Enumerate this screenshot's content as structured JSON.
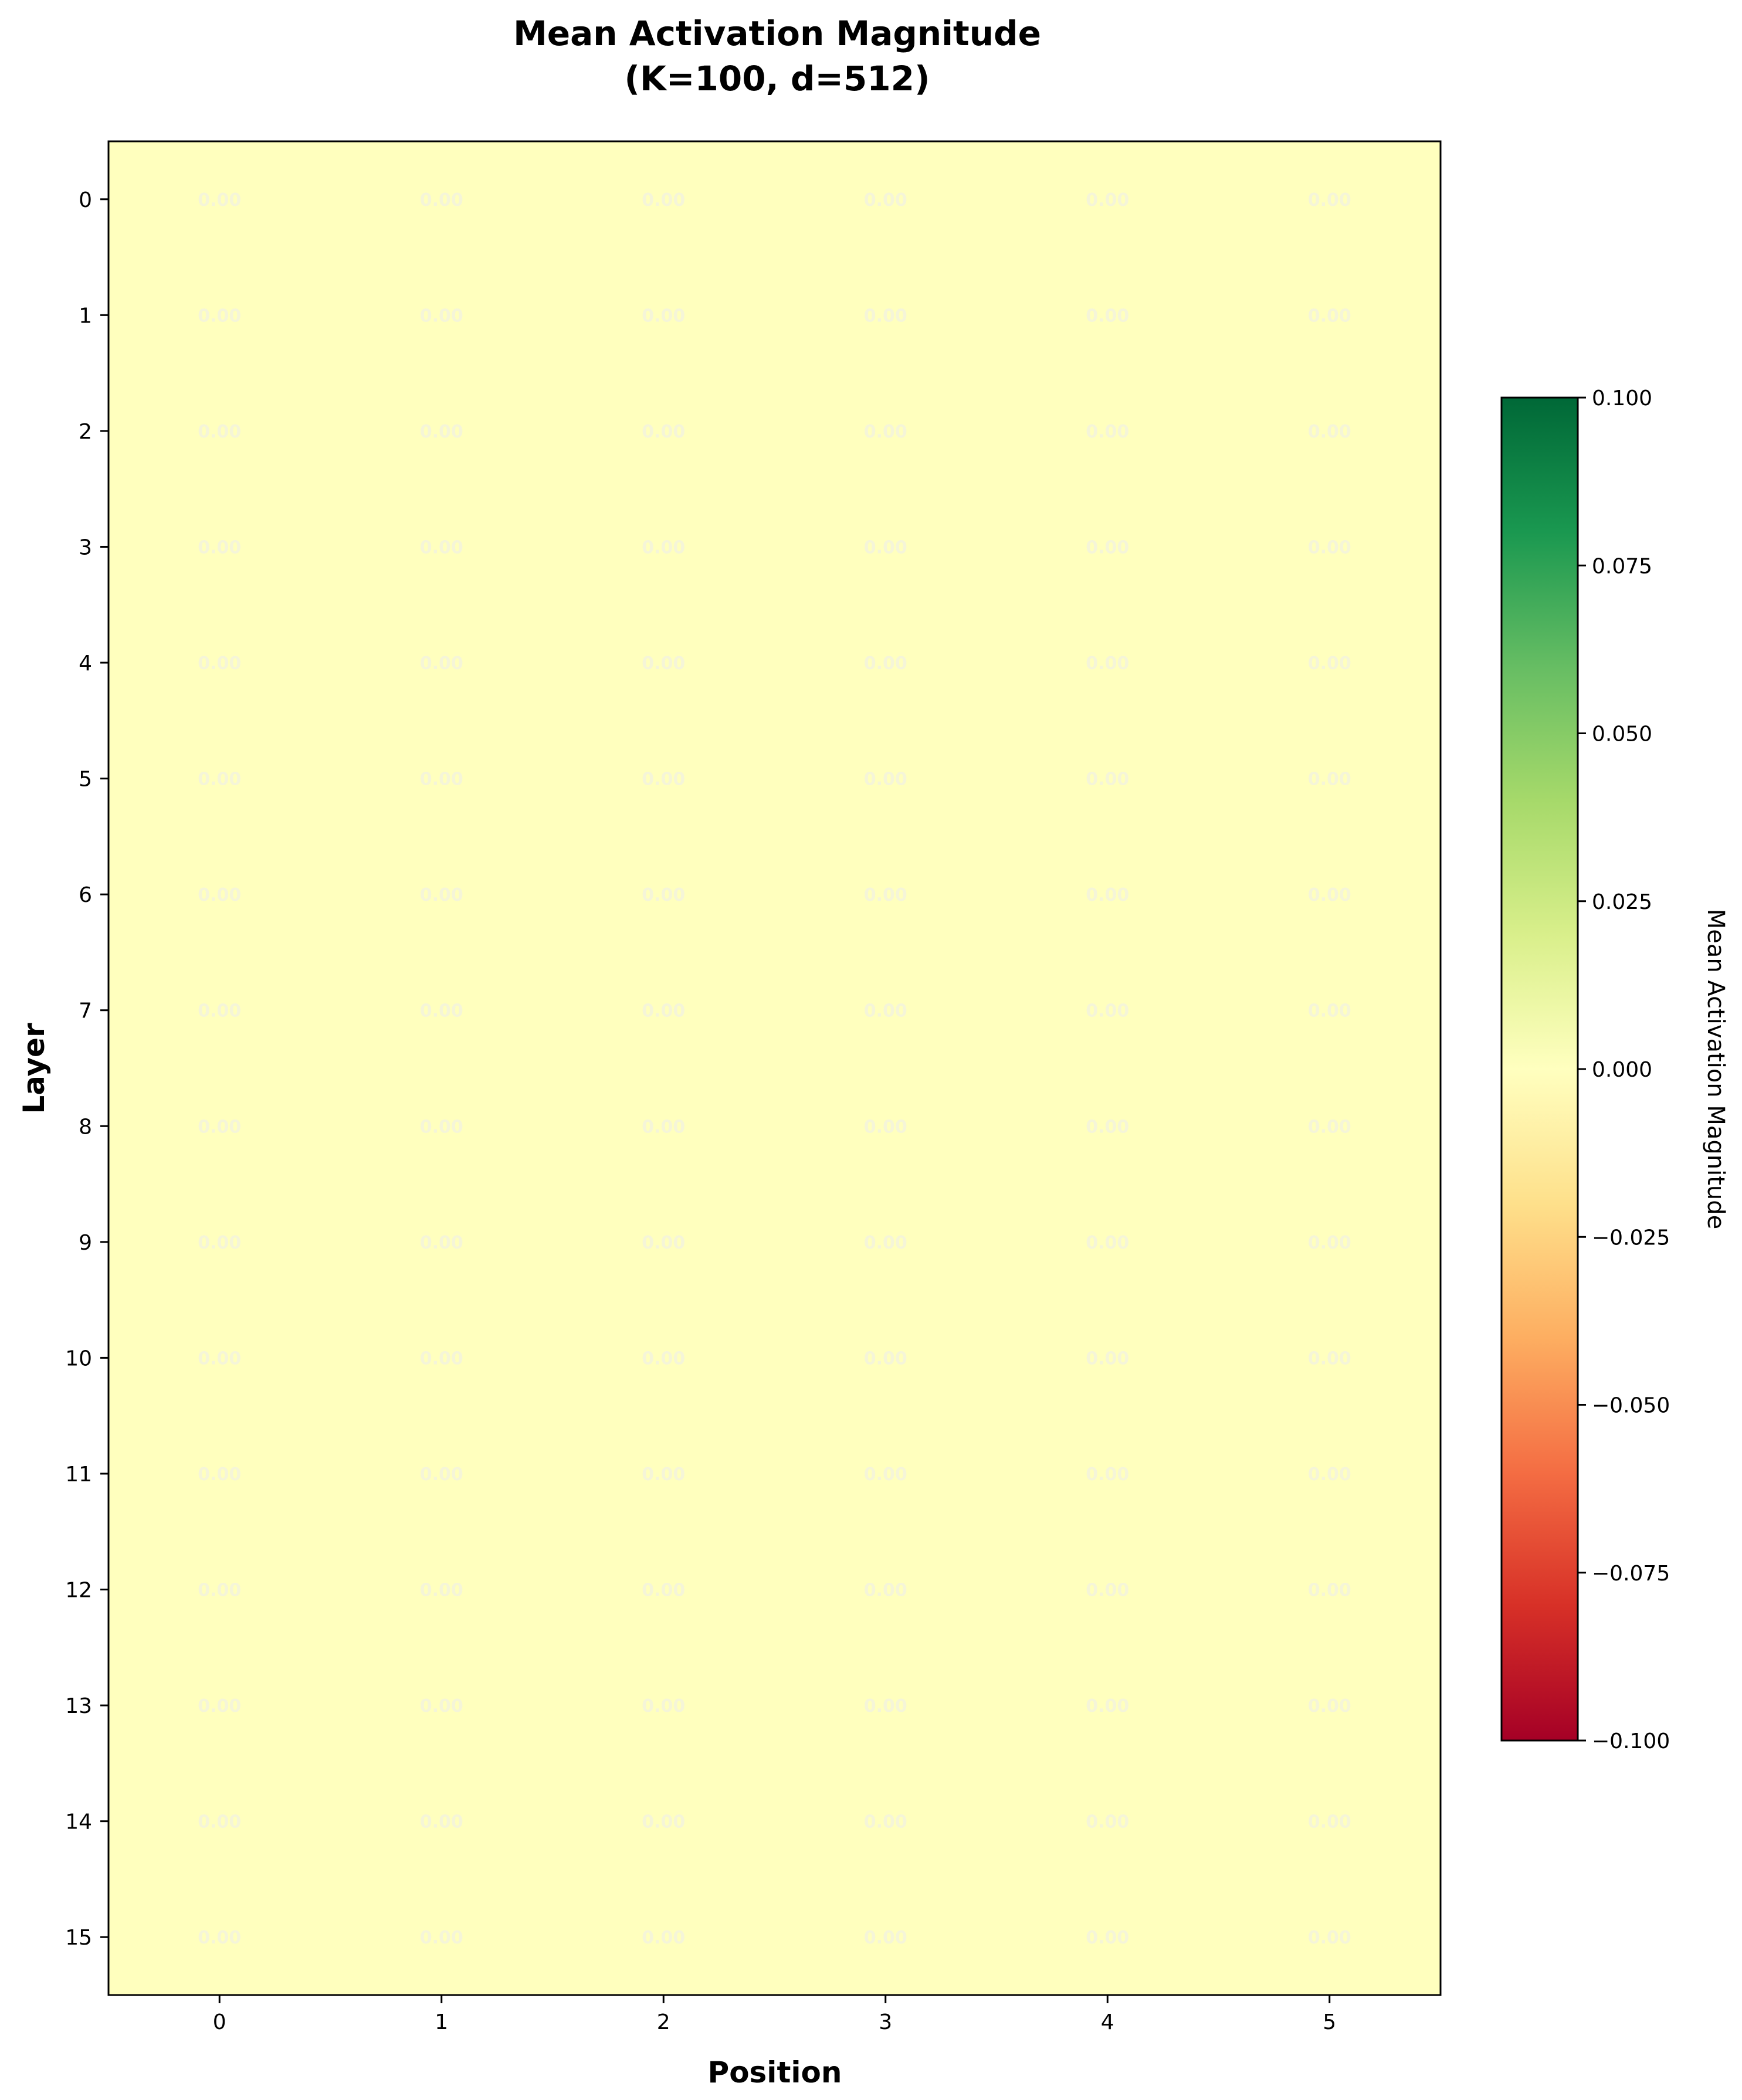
{
  "chart_data": {
    "type": "heatmap",
    "title_lines": [
      "Mean Activation Magnitude",
      "(K=100, d=512)"
    ],
    "xlabel": "Position",
    "ylabel": "Layer",
    "x_categories": [
      "0",
      "1",
      "2",
      "3",
      "4",
      "5"
    ],
    "y_categories": [
      "0",
      "1",
      "2",
      "3",
      "4",
      "5",
      "6",
      "7",
      "8",
      "9",
      "10",
      "11",
      "12",
      "13",
      "14",
      "15"
    ],
    "values": [
      [
        0,
        0,
        0,
        0,
        0,
        0
      ],
      [
        0,
        0,
        0,
        0,
        0,
        0
      ],
      [
        0,
        0,
        0,
        0,
        0,
        0
      ],
      [
        0,
        0,
        0,
        0,
        0,
        0
      ],
      [
        0,
        0,
        0,
        0,
        0,
        0
      ],
      [
        0,
        0,
        0,
        0,
        0,
        0
      ],
      [
        0,
        0,
        0,
        0,
        0,
        0
      ],
      [
        0,
        0,
        0,
        0,
        0,
        0
      ],
      [
        0,
        0,
        0,
        0,
        0,
        0
      ],
      [
        0,
        0,
        0,
        0,
        0,
        0
      ],
      [
        0,
        0,
        0,
        0,
        0,
        0
      ],
      [
        0,
        0,
        0,
        0,
        0,
        0
      ],
      [
        0,
        0,
        0,
        0,
        0,
        0
      ],
      [
        0,
        0,
        0,
        0,
        0,
        0
      ],
      [
        0,
        0,
        0,
        0,
        0,
        0
      ],
      [
        0,
        0,
        0,
        0,
        0,
        0
      ]
    ],
    "cell_label_text": "0.00",
    "colorbar": {
      "label": "Mean Activation Magnitude",
      "range": [
        -0.1,
        0.1
      ],
      "ticks": [
        "0.100",
        "0.075",
        "0.050",
        "0.025",
        "0.000",
        "−0.025",
        "−0.050",
        "−0.075",
        "−0.100"
      ],
      "colormap": "RdYlGn",
      "gradient_colors": [
        "#a50026",
        "#d73027",
        "#f46d43",
        "#fdae61",
        "#fee08b",
        "#ffffbf",
        "#d9ef8b",
        "#a6d96a",
        "#66bd63",
        "#1a9850",
        "#006837"
      ]
    },
    "grid": false,
    "cell_color": "#ffffbe",
    "label_color": "#f5f5d8"
  }
}
